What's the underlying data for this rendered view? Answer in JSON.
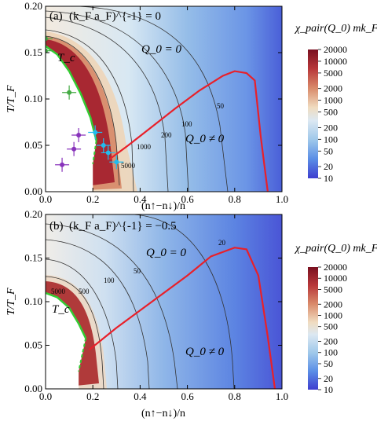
{
  "chart_data": [
    {
      "type": "heatmap",
      "panel_label": "(a)",
      "title": "(k_F a_F)^{-1} = 0",
      "xlabel": "(n↑−n↓)/n",
      "ylabel": "T/T_F",
      "xlim": [
        0.0,
        1.0
      ],
      "ylim": [
        0.0,
        0.2
      ],
      "x_ticks": [
        "0.0",
        "0.2",
        "0.4",
        "0.6",
        "0.8",
        "1.0"
      ],
      "y_ticks": [
        "0.00",
        "0.05",
        "0.10",
        "0.15",
        "0.20"
      ],
      "colorbar_label": "χ_pair(Q_0) mk_F",
      "colorbar_ticks": [
        "20000",
        "10000",
        "5000",
        "2000",
        "1000",
        "500",
        "200",
        "100",
        "50",
        "20",
        "10"
      ],
      "region_labels": {
        "q0_zero": "Q_0 = 0",
        "q0_nonzero": "Q_0 ≠ 0",
        "tc": "T_c"
      },
      "contour_labels": [
        "50",
        "100",
        "200",
        "1000",
        "5000"
      ],
      "tc_curve": [
        [
          0.0,
          0.157
        ],
        [
          0.05,
          0.148
        ],
        [
          0.1,
          0.13
        ],
        [
          0.15,
          0.105
        ],
        [
          0.19,
          0.08
        ],
        [
          0.215,
          0.055
        ]
      ],
      "tc_dashed": [
        [
          0.215,
          0.055
        ],
        [
          0.2,
          0.03
        ]
      ],
      "boundary_curve": [
        [
          0.27,
          0.035
        ],
        [
          0.35,
          0.05
        ],
        [
          0.45,
          0.07
        ],
        [
          0.55,
          0.09
        ],
        [
          0.65,
          0.109
        ],
        [
          0.75,
          0.125
        ],
        [
          0.8,
          0.13
        ],
        [
          0.85,
          0.128
        ],
        [
          0.885,
          0.12
        ],
        [
          0.91,
          0.06
        ],
        [
          0.94,
          0.0
        ]
      ],
      "experiment_points": [
        {
          "x": 0.0,
          "y": 0.165,
          "color": "#44aa44"
        },
        {
          "x": 0.0,
          "y": 0.152,
          "color": "#44aa44"
        },
        {
          "x": 0.1,
          "y": 0.107,
          "color": "#44aa44"
        },
        {
          "x": 0.21,
          "y": 0.064,
          "color": "#22bbee"
        },
        {
          "x": 0.245,
          "y": 0.05,
          "color": "#22bbee"
        },
        {
          "x": 0.265,
          "y": 0.042,
          "color": "#22bbee"
        },
        {
          "x": 0.3,
          "y": 0.032,
          "color": "#22bbee"
        },
        {
          "x": 0.14,
          "y": 0.061,
          "color": "#8833bb"
        },
        {
          "x": 0.12,
          "y": 0.046,
          "color": "#8833bb"
        },
        {
          "x": 0.07,
          "y": 0.029,
          "color": "#8833bb"
        }
      ]
    },
    {
      "type": "heatmap",
      "panel_label": "(b)",
      "title": "(k_F a_F)^{-1} = −0.5",
      "xlabel": "(n↑−n↓)/n",
      "ylabel": "T/T_F",
      "xlim": [
        0.0,
        1.0
      ],
      "ylim": [
        0.0,
        0.2
      ],
      "x_ticks": [
        "0.0",
        "0.2",
        "0.4",
        "0.6",
        "0.8",
        "1.0"
      ],
      "y_ticks": [
        "0.00",
        "0.05",
        "0.10",
        "0.15",
        "0.20"
      ],
      "colorbar_label": "χ_pair(Q_0) mk_F",
      "colorbar_ticks": [
        "20000",
        "10000",
        "5000",
        "2000",
        "1000",
        "500",
        "200",
        "100",
        "50",
        "20",
        "10"
      ],
      "region_labels": {
        "q0_zero": "Q_0 = 0",
        "q0_nonzero": "Q_0 ≠ 0",
        "tc": "T_c"
      },
      "contour_labels": [
        "20",
        "50",
        "100",
        "500",
        "5000"
      ],
      "tc_curve": [
        [
          0.0,
          0.11
        ],
        [
          0.05,
          0.105
        ],
        [
          0.1,
          0.093
        ],
        [
          0.14,
          0.075
        ],
        [
          0.17,
          0.058
        ]
      ],
      "tc_dashed": [
        [
          0.17,
          0.058
        ],
        [
          0.14,
          0.02
        ]
      ],
      "boundary_curve": [
        [
          0.185,
          0.045
        ],
        [
          0.3,
          0.07
        ],
        [
          0.45,
          0.1
        ],
        [
          0.6,
          0.13
        ],
        [
          0.7,
          0.152
        ],
        [
          0.8,
          0.162
        ],
        [
          0.85,
          0.16
        ],
        [
          0.9,
          0.13
        ],
        [
          0.94,
          0.06
        ],
        [
          0.97,
          0.0
        ]
      ]
    }
  ]
}
